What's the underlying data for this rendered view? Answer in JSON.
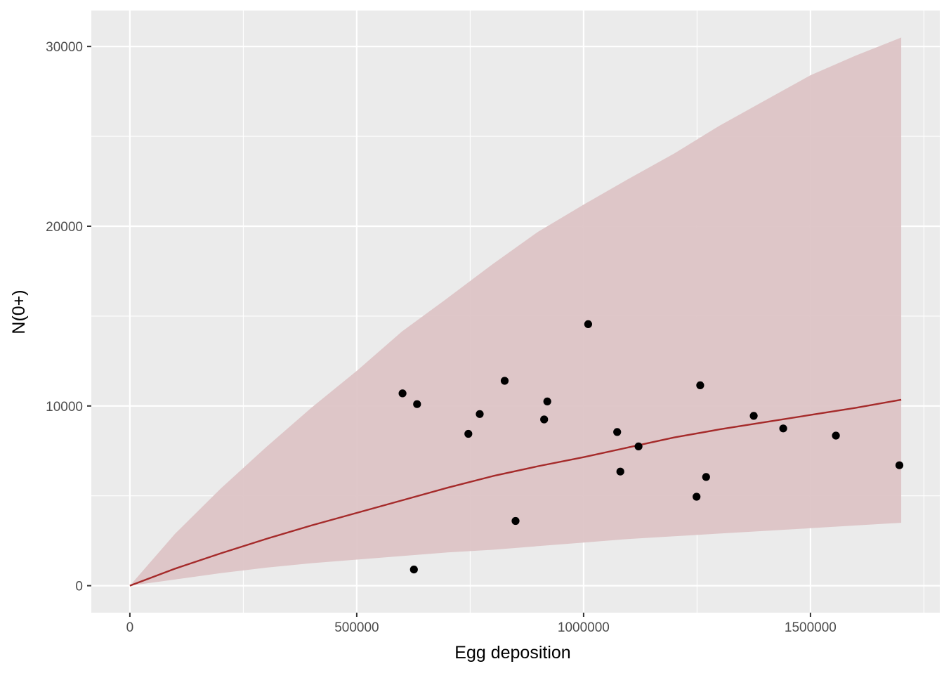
{
  "chart_data": {
    "type": "scatter",
    "title": "",
    "xlabel": "Egg deposition",
    "ylabel": "N(0+)",
    "xlim": [
      -85000,
      1785000
    ],
    "ylim": [
      -1500,
      32000
    ],
    "x_ticks": [
      0,
      500000,
      1000000,
      1500000
    ],
    "x_tick_labels": [
      "0",
      "500000",
      "1000000",
      "1500000"
    ],
    "x_minor_ticks": [
      250000,
      750000,
      1250000,
      1750000
    ],
    "y_ticks": [
      0,
      10000,
      20000,
      30000
    ],
    "y_tick_labels": [
      "0",
      "10000",
      "20000",
      "30000"
    ],
    "y_minor_ticks": [
      5000,
      15000,
      25000
    ],
    "grid": true,
    "colors": {
      "panel_bg": "#ebebeb",
      "grid": "#ffffff",
      "ribbon": "#ddc4c6",
      "line": "#a52a2a",
      "points": "#000000"
    },
    "points": [
      {
        "x": 601000,
        "y": 10700
      },
      {
        "x": 626000,
        "y": 900
      },
      {
        "x": 633000,
        "y": 10100
      },
      {
        "x": 746000,
        "y": 8450
      },
      {
        "x": 771000,
        "y": 9550
      },
      {
        "x": 826000,
        "y": 11400
      },
      {
        "x": 850000,
        "y": 3600
      },
      {
        "x": 913000,
        "y": 9250
      },
      {
        "x": 920000,
        "y": 10250
      },
      {
        "x": 1010000,
        "y": 14550
      },
      {
        "x": 1074000,
        "y": 8550
      },
      {
        "x": 1081000,
        "y": 6350
      },
      {
        "x": 1121000,
        "y": 7750
      },
      {
        "x": 1249000,
        "y": 4950
      },
      {
        "x": 1257000,
        "y": 11150
      },
      {
        "x": 1270000,
        "y": 6050
      },
      {
        "x": 1375000,
        "y": 9450
      },
      {
        "x": 1440000,
        "y": 8750
      },
      {
        "x": 1556000,
        "y": 8350
      },
      {
        "x": 1696000,
        "y": 6700
      }
    ],
    "fit_line": {
      "x": [
        0,
        100000,
        200000,
        300000,
        400000,
        500000,
        600000,
        700000,
        800000,
        900000,
        1000000,
        1100000,
        1200000,
        1300000,
        1400000,
        1500000,
        1600000,
        1700000
      ],
      "y": [
        0,
        950,
        1800,
        2600,
        3350,
        4050,
        4750,
        5450,
        6100,
        6650,
        7150,
        7700,
        8250,
        8700,
        9100,
        9500,
        9900,
        10350
      ]
    },
    "ribbon": {
      "x": [
        0,
        100000,
        200000,
        300000,
        400000,
        500000,
        600000,
        700000,
        800000,
        900000,
        1000000,
        1100000,
        1200000,
        1300000,
        1400000,
        1500000,
        1600000,
        1700000
      ],
      "upper": [
        0,
        2900,
        5400,
        7700,
        9900,
        11950,
        14150,
        16000,
        17900,
        19700,
        21200,
        22650,
        24050,
        25600,
        27000,
        28400,
        29500,
        30500
      ],
      "lower": [
        0,
        350,
        700,
        1000,
        1250,
        1450,
        1650,
        1850,
        2000,
        2200,
        2400,
        2600,
        2750,
        2900,
        3050,
        3200,
        3350,
        3500
      ]
    }
  }
}
